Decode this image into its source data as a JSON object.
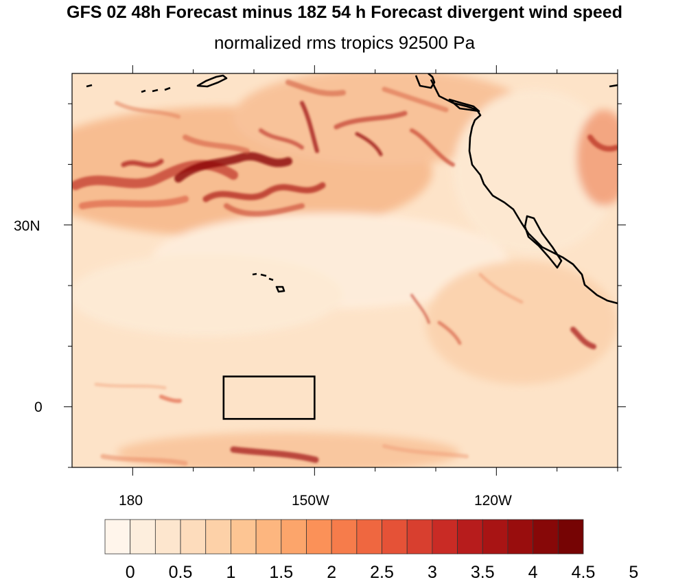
{
  "title": "GFS 0Z 48h Forecast minus 18Z 54 h Forecast divergent wind speed",
  "subtitle": "normalized rms tropics 92500 Pa",
  "axes": {
    "lat_labels": [
      "30N",
      "0"
    ],
    "lon_labels": [
      "180",
      "150W",
      "120W"
    ]
  },
  "region_box": {
    "lon_min": -165,
    "lon_max": -150,
    "lat_min": -2,
    "lat_max": 5
  },
  "colorbar": {
    "labels": [
      "0",
      "0.5",
      "1",
      "1.5",
      "2",
      "2.5",
      "3",
      "3.5",
      "4",
      "4.5",
      "5"
    ],
    "colors": [
      "#fff5eb",
      "#fdeedd",
      "#fde6ce",
      "#fddcbc",
      "#fdd1a8",
      "#fdc593",
      "#fdb67f",
      "#fca56b",
      "#fb9158",
      "#f67c4b",
      "#ef6740",
      "#e55237",
      "#d83f2f",
      "#c92b25",
      "#b71c1c",
      "#a81414",
      "#990d0d",
      "#870808",
      "#760404"
    ]
  },
  "colors": {
    "coastline": "#000000",
    "background_field": "#fde6cc"
  }
}
